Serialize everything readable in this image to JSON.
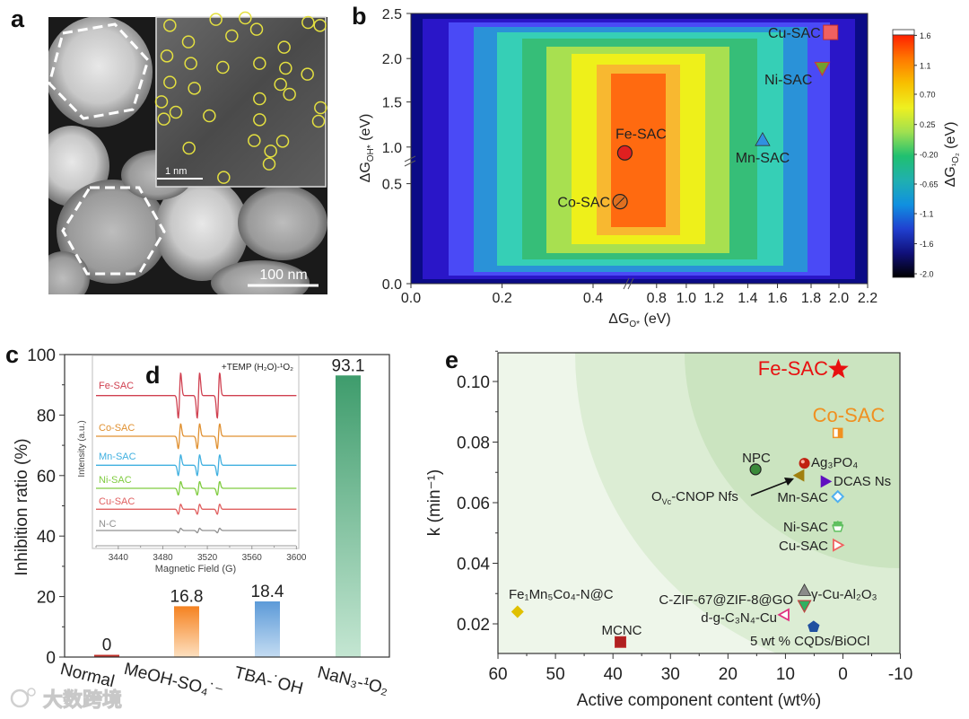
{
  "panel_labels": {
    "a": "a",
    "b": "b",
    "c": "c",
    "d": "d",
    "e": "e"
  },
  "panel_a": {
    "scale_bar_main": "100 nm",
    "scale_bar_inset": "1 nm"
  },
  "watermark": "大数跨境",
  "chart_data": [
    {
      "id": "b",
      "type": "heatmap",
      "xlabel": {
        "symbol": "ΔG",
        "sub": "O*",
        "unit": " (eV)"
      },
      "ylabel": {
        "symbol": "ΔG",
        "sub": "OH*",
        "unit": " (eV)"
      },
      "xlim": [
        0,
        2.2
      ],
      "ylim": [
        0,
        2.5
      ],
      "x_ticks": [
        "0.0",
        "0.2",
        "0.4",
        "0.8",
        "1.0",
        "1.2",
        "1.4",
        "1.6",
        "1.8",
        "2.0",
        "2.2"
      ],
      "x_axis_break_between": [
        0.4,
        0.8
      ],
      "y_ticks": [
        "0.0",
        "0.5",
        "1.0",
        "1.5",
        "2.0",
        "2.5"
      ],
      "y_axis_break_between": [
        0.5,
        1.0
      ],
      "level_colors": [
        "#0b0b86",
        "#2a16c8",
        "#4a4af6",
        "#2a92d8",
        "#36cfb6",
        "#36be78",
        "#a8e050",
        "#eef01a",
        "#f8b830",
        "#ff6a10"
      ],
      "colorbar": {
        "label": {
          "symbol": "ΔG",
          "sub": "¹O₂",
          "unit": " (eV)"
        },
        "range": [
          -2.0,
          1.6
        ],
        "ticks": [
          "1.6",
          "1.1",
          "0.70",
          "0.25",
          "-0.20",
          "-0.65",
          "-1.1",
          "-1.6",
          "-2.0"
        ],
        "colors": [
          "#ff2000",
          "#ff7a00",
          "#f8c000",
          "#eef020",
          "#a0e050",
          "#20c070",
          "#20b0b0",
          "#1090e0",
          "#2040d0",
          "#10107a",
          "#000000"
        ]
      },
      "points": [
        {
          "label": "Fe-SAC",
          "x": 0.6,
          "y": 0.92,
          "marker": "circle",
          "color": "#e02020"
        },
        {
          "label": "Co-SAC",
          "x": 0.57,
          "y": 0.41,
          "marker": "hatched-circle",
          "color": "#e07020"
        },
        {
          "label": "Mn-SAC",
          "x": 1.5,
          "y": 1.08,
          "marker": "triangle-up",
          "color": "#3090e0"
        },
        {
          "label": "Ni-SAC",
          "x": 1.88,
          "y": 1.89,
          "marker": "triangle-down",
          "color": "#70a030"
        },
        {
          "label": "Cu-SAC",
          "x": 1.94,
          "y": 2.29,
          "marker": "square",
          "color": "#f06060"
        }
      ]
    },
    {
      "id": "c",
      "type": "bar",
      "ylabel": "Inhibition ratio (%)",
      "ylim": [
        0,
        100
      ],
      "y_ticks": [
        "0",
        "20",
        "40",
        "60",
        "80",
        "100"
      ],
      "categories": [
        "Normal",
        "MeOH-SO₄˙⁻",
        "TBA-˙OH",
        "NaN₃-¹O₂"
      ],
      "values": [
        0,
        16.8,
        18.4,
        93.1
      ],
      "value_labels": [
        "0",
        "16.8",
        "18.4",
        "93.1"
      ],
      "colors": [
        [
          "#c0302a",
          "#c0302a"
        ],
        [
          "#f58220",
          "#fde0c0"
        ],
        [
          "#5c9ad8",
          "#c4dcf2"
        ],
        [
          "#3e9c6c",
          "#c4e6d2"
        ]
      ]
    },
    {
      "id": "d",
      "type": "line",
      "title": "+TEMP (H₂O)-¹O₂",
      "xlabel": "Magnetic Field (G)",
      "ylabel": "Intensity (a.u.)",
      "xlim": [
        3420,
        3600
      ],
      "x_ticks": [
        "3440",
        "3480",
        "3520",
        "3560",
        "3600"
      ],
      "peak_positions": [
        3495,
        3512,
        3530
      ],
      "series": [
        {
          "name": "Fe-SAC",
          "relative_intensity": 1.0,
          "color": "#d04050"
        },
        {
          "name": "Co-SAC",
          "relative_intensity": 0.55,
          "color": "#e09030"
        },
        {
          "name": "Mn-SAC",
          "relative_intensity": 0.46,
          "color": "#40b0e0"
        },
        {
          "name": "Ni-SAC",
          "relative_intensity": 0.3,
          "color": "#80cc40"
        },
        {
          "name": "Cu-SAC",
          "relative_intensity": 0.22,
          "color": "#e06060"
        },
        {
          "name": "N-C",
          "relative_intensity": 0.1,
          "color": "#909090"
        }
      ]
    },
    {
      "id": "e",
      "type": "scatter",
      "xlabel": "Active component content (wt%)",
      "ylabel": "k (min⁻¹)",
      "xlim": [
        60,
        -10
      ],
      "ylim": [
        0.0096,
        0.109
      ],
      "x_ticks": [
        "60",
        "50",
        "40",
        "30",
        "20",
        "10",
        "0",
        "-10"
      ],
      "y_ticks": [
        "0.02",
        "0.04",
        "0.06",
        "0.08",
        "0.10"
      ],
      "points": [
        {
          "label": "Fe-SAC",
          "x": 0.8,
          "y": 0.104,
          "marker": "star",
          "color": "#e81010",
          "highlight": true
        },
        {
          "label": "Co-SAC",
          "x": 0.9,
          "y": 0.083,
          "marker": "half-square",
          "color": "#f09020",
          "highlight": true
        },
        {
          "label": "NPC",
          "x": 15.2,
          "y": 0.071,
          "marker": "circle",
          "color": "#3a8a3a"
        },
        {
          "label": "Ag₃PO₄",
          "x": 6.7,
          "y": 0.073,
          "marker": "sphere",
          "color": "#c02010"
        },
        {
          "label": [
            {
              "t": "O"
            },
            {
              "t": "Vc",
              "sub": true
            },
            {
              "t": "-CNOP Nfs"
            }
          ],
          "x": 7.6,
          "y": 0.069,
          "marker": "triangle-left",
          "color": "#a08010"
        },
        {
          "label": "DCAS Ns",
          "x": 3.0,
          "y": 0.067,
          "marker": "triangle-right",
          "color": "#6010c0"
        },
        {
          "label": "Mn-SAC",
          "x": 0.9,
          "y": 0.062,
          "marker": "diamond-open",
          "color": "#50b0f0"
        },
        {
          "label": "Ni-SAC",
          "x": 0.9,
          "y": 0.052,
          "marker": "half-pentagon",
          "color": "#60c060"
        },
        {
          "label": "Cu-SAC",
          "x": 0.9,
          "y": 0.046,
          "marker": "triangle-right-open",
          "color": "#f06060"
        },
        {
          "label": "γ-Cu-Al₂O₃",
          "x": 6.7,
          "y": 0.031,
          "marker": "triangle-up",
          "color": "#8a8a8a"
        },
        {
          "label": "C-ZIF-67@ZIF-8@GO",
          "x": 6.7,
          "y": 0.026,
          "marker": "triangle-down",
          "color": "#30b060"
        },
        {
          "label": "d-g-C₃N₄-Cu",
          "x": 10.2,
          "y": 0.023,
          "marker": "triangle-left-open",
          "color": "#e03080"
        },
        {
          "label": "5 wt % CQDs/BiOCl",
          "x": 5.1,
          "y": 0.019,
          "marker": "pentagon",
          "color": "#2050a0"
        },
        {
          "label": "Fe₁Mn₅Co₄-N@C",
          "x": 56.6,
          "y": 0.024,
          "marker": "diamond",
          "color": "#e0c000"
        },
        {
          "label": "MCNC",
          "x": 38.7,
          "y": 0.014,
          "marker": "square",
          "color": "#b02020"
        }
      ]
    }
  ]
}
